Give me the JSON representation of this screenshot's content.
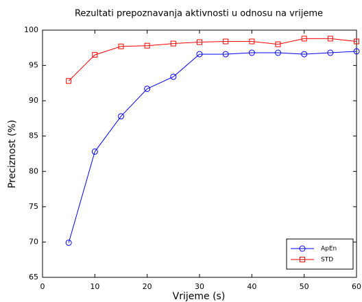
{
  "chart_data": {
    "type": "line",
    "title": "Rezultati prepoznavanja aktivnosti u odnosu na vrijeme",
    "x_label": "Vrijeme (s)",
    "y_label": "Preciznost (%)",
    "x": [
      5,
      10,
      15,
      20,
      25,
      30,
      35,
      40,
      45,
      50,
      55,
      60
    ],
    "series": [
      {
        "name": "ApEn",
        "color": "#0000ff",
        "marker": "o",
        "values": [
          69.9,
          82.8,
          87.8,
          91.7,
          93.4,
          96.6,
          96.6,
          96.8,
          96.8,
          96.6,
          96.8,
          97.0
        ]
      },
      {
        "name": "STD",
        "color": "#ff0000",
        "marker": "s",
        "values": [
          92.8,
          96.5,
          97.7,
          97.8,
          98.1,
          98.3,
          98.4,
          98.4,
          98.0,
          98.8,
          98.8,
          98.4
        ]
      }
    ],
    "xlim": [
      0,
      60
    ],
    "xticks": [
      0,
      10,
      20,
      30,
      40,
      50,
      60
    ],
    "ylim": [
      65,
      100
    ],
    "yticks": [
      65,
      70,
      75,
      80,
      85,
      90,
      95,
      100
    ],
    "grid": false,
    "legend": "lower right"
  }
}
